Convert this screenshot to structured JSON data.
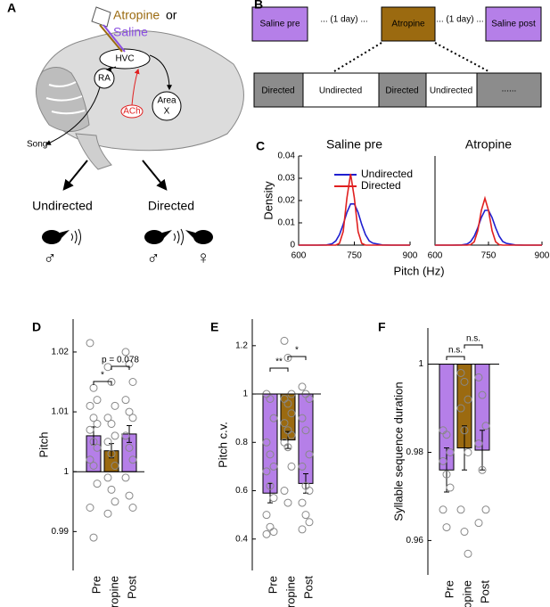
{
  "panel_labels": [
    "A",
    "B",
    "C",
    "D",
    "E",
    "F"
  ],
  "diagram_a": {
    "drug": "Atropine",
    "or": "or",
    "saline": "Saline",
    "nuclei": [
      "HVC",
      "RA",
      "ACh",
      "Area",
      "X"
    ],
    "song": "Song",
    "conditions": [
      "Undirected",
      "Directed"
    ],
    "symbols": [
      "♂",
      "♂",
      "♀"
    ]
  },
  "diagram_b": {
    "top_row": [
      "Saline pre",
      "... (1 day) ...",
      "Atropine",
      "... (1 day) ...",
      "Saline post"
    ],
    "bottom_row": [
      "Directed",
      "Undirected",
      "Directed",
      "Undirected",
      "......"
    ]
  },
  "chart_data": [
    {
      "type": "line",
      "title": "Saline pre",
      "ylabel": "Density",
      "xlabel": "Pitch (Hz)",
      "x": [
        600,
        650,
        675,
        690,
        700,
        710,
        720,
        730,
        740,
        750,
        760,
        770,
        780,
        790,
        800,
        825,
        850,
        900
      ],
      "series": [
        {
          "name": "Undirected",
          "color": "#1f1fd0",
          "values": [
            0,
            0,
            0.0001,
            0.0006,
            0.0019,
            0.0047,
            0.0093,
            0.0147,
            0.0185,
            0.0185,
            0.0147,
            0.0093,
            0.0047,
            0.0019,
            0.0009,
            0.0001,
            0,
            0
          ]
        },
        {
          "name": "Directed",
          "color": "#e02020",
          "values": [
            0,
            0,
            0,
            0,
            0,
            0.0008,
            0.0061,
            0.0212,
            0.032,
            0.0212,
            0.0061,
            0.0008,
            0,
            0,
            0,
            0,
            0,
            0
          ]
        }
      ],
      "xlim": [
        600,
        900
      ],
      "xticks": [
        600,
        750,
        900
      ],
      "ylim": [
        0,
        0.04
      ],
      "yticks": [
        0,
        0.01,
        0.02,
        0.03,
        0.04
      ]
    },
    {
      "type": "line",
      "title": "Atropine",
      "x": [
        600,
        650,
        675,
        690,
        700,
        710,
        720,
        730,
        740,
        750,
        760,
        770,
        780,
        790,
        800,
        825,
        850,
        900
      ],
      "series": [
        {
          "color": "#1f1fd0",
          "values": [
            0,
            0,
            0.0001,
            0.0005,
            0.0016,
            0.004,
            0.0078,
            0.0124,
            0.0156,
            0.0156,
            0.0124,
            0.0078,
            0.004,
            0.0016,
            0.0008,
            0.0001,
            0,
            0
          ]
        },
        {
          "color": "#e02020",
          "values": [
            0,
            0,
            0,
            0,
            0.0002,
            0.0015,
            0.0065,
            0.0156,
            0.021,
            0.0156,
            0.0065,
            0.0015,
            0.0002,
            0,
            0,
            0,
            0,
            0
          ]
        }
      ],
      "xlim": [
        600,
        900
      ],
      "xticks": [
        600,
        750,
        900
      ],
      "ylim": [
        0,
        0.04
      ]
    },
    {
      "type": "bar",
      "ylabel": "Pitch",
      "categories": [
        "Pre",
        "Atropine",
        "Post"
      ],
      "values": [
        1.006,
        1.0035,
        1.0063
      ],
      "errors": [
        0.0015,
        0.0012,
        0.0014
      ],
      "colors": [
        "#b57fe8",
        "#9b6a10",
        "#b57fe8"
      ],
      "baseline": 1,
      "points": [
        [
          1.0215,
          1.014,
          1.012,
          1.011,
          1.009,
          1.008,
          1.007,
          1.005,
          1.004,
          1.002,
          1.001,
          0.998,
          0.994,
          0.989
        ],
        [
          1.0175,
          1.015,
          1.011,
          1.009,
          1.008,
          1.006,
          1.005,
          1.003,
          1.001,
          0.999,
          0.997,
          0.995,
          0.993
        ],
        [
          1.02,
          1.018,
          1.015,
          1.012,
          1.01,
          1.009,
          1.006,
          1.004,
          1.002,
          0.999,
          0.996,
          0.994
        ]
      ],
      "annotations": [
        "*",
        "p = 0.078"
      ],
      "ylim": [
        0.9835,
        1.0255
      ],
      "yticks": [
        0.99,
        1,
        1.01,
        1.02
      ]
    },
    {
      "type": "bar",
      "ylabel": "Pitch c.v.",
      "categories": [
        "Pre",
        "Atropine",
        "Post"
      ],
      "values": [
        0.59,
        0.81,
        0.63
      ],
      "errors": [
        0.04,
        0.035,
        0.04
      ],
      "colors": [
        "#b57fe8",
        "#9b6a10",
        "#b57fe8"
      ],
      "baseline": 1,
      "points": [
        [
          1.0,
          0.98,
          0.9,
          0.8,
          0.75,
          0.7,
          0.68,
          0.62,
          0.57,
          0.5,
          0.45,
          0.43,
          0.42
        ],
        [
          1.22,
          1.15,
          1.0,
          0.98,
          0.96,
          0.92,
          0.88,
          0.85,
          0.83,
          0.8,
          0.78,
          0.7,
          0.6,
          0.55
        ],
        [
          1.03,
          1.0,
          0.98,
          0.9,
          0.85,
          0.75,
          0.7,
          0.62,
          0.6,
          0.55,
          0.5,
          0.47,
          0.44
        ]
      ],
      "annotations": [
        "**",
        "*"
      ],
      "ylim": [
        0.27,
        1.31
      ],
      "yticks": [
        0.4,
        0.6,
        0.8,
        1,
        1.2
      ]
    },
    {
      "type": "bar",
      "ylabel": "Syllable sequence duration",
      "categories": [
        "Pre",
        "Atropine",
        "Post"
      ],
      "values": [
        0.976,
        0.981,
        0.9805
      ],
      "errors": [
        0.005,
        0.005,
        0.0045
      ],
      "colors": [
        "#b57fe8",
        "#9b6a10",
        "#b57fe8"
      ],
      "baseline": 1,
      "points": [
        [
          0.985,
          0.984,
          0.98,
          0.978,
          0.975,
          0.972,
          0.967,
          0.963
        ],
        [
          0.998,
          0.996,
          0.992,
          0.99,
          0.985,
          0.98,
          0.967,
          0.962,
          0.957
        ],
        [
          0.997,
          0.993,
          0.986,
          0.982,
          0.976,
          0.967,
          0.964
        ]
      ],
      "annotations": [
        "n.s.",
        "n.s."
      ],
      "ylim": [
        0.9522,
        1.0082
      ],
      "yticks": [
        0.96,
        0.98,
        1
      ]
    }
  ]
}
